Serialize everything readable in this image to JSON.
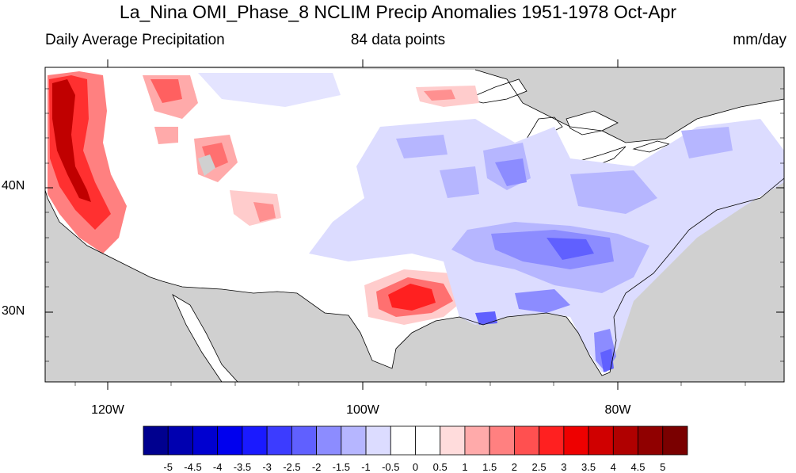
{
  "title": "La_Nina OMI_Phase_8 NCLIM Precip Anomalies 1951-1978 Oct-Apr",
  "subtitle_left": "Daily Average Precipitation",
  "subtitle_center": "84 data points",
  "subtitle_right": "mm/day",
  "map": {
    "lat_labels": [
      "40N",
      "30N"
    ],
    "lon_labels": [
      "120W",
      "100W",
      "80W"
    ],
    "land_color": "#ffffff",
    "ocean_masked_color": "#d0d0d0"
  },
  "colorbar": {
    "levels": [
      "-5",
      "-4.5",
      "-4",
      "-3.5",
      "-3",
      "-2.5",
      "-2",
      "-1.5",
      "-1",
      "-0.5",
      "0",
      "0.5",
      "1",
      "1.5",
      "2",
      "2.5",
      "3",
      "3.5",
      "4",
      "4.5",
      "5"
    ],
    "colors": [
      "#00008f",
      "#0000b0",
      "#0000d0",
      "#0000ee",
      "#1a1aff",
      "#3c3cff",
      "#6060ff",
      "#8c8cff",
      "#b6b6ff",
      "#dcdcff",
      "#ffffff",
      "#ffffff",
      "#ffdcdc",
      "#ffaaaa",
      "#ff8080",
      "#ff5050",
      "#ff2020",
      "#ee0000",
      "#d00000",
      "#b00000",
      "#900000",
      "#7a0000"
    ]
  }
}
